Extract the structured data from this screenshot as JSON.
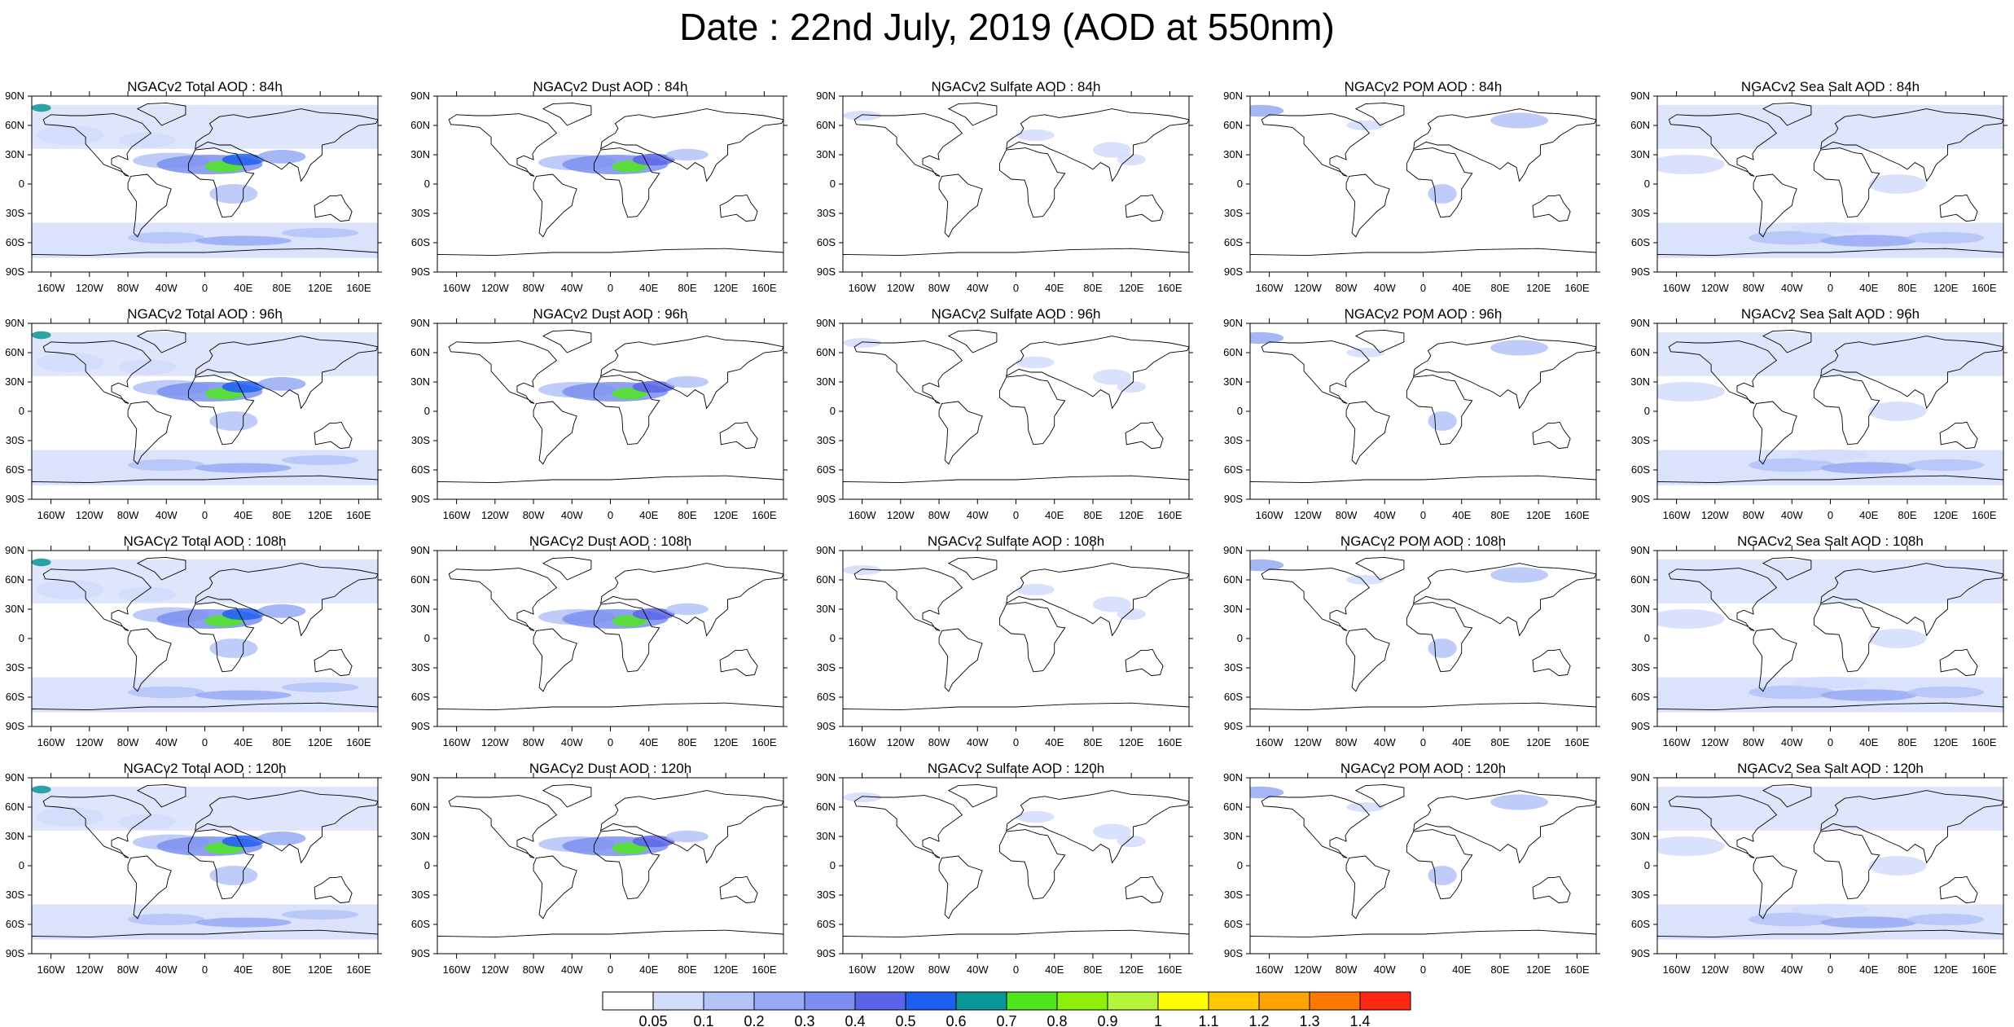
{
  "title": "Date : 22nd July, 2019 (AOD at 550nm)",
  "lat_ticks": [
    "90N",
    "60N",
    "30N",
    "0",
    "30S",
    "60S",
    "90S"
  ],
  "lon_ticks": [
    "160W",
    "120W",
    "80W",
    "40W",
    "0",
    "40E",
    "80E",
    "120E",
    "160E"
  ],
  "colorbar": {
    "colors": [
      "#ffffff",
      "#d2dcfb",
      "#b4c3f8",
      "#96aaf5",
      "#7a8ff0",
      "#5a64e8",
      "#1e5ff0",
      "#0a9696",
      "#50e61e",
      "#8cf00a",
      "#b4f53c",
      "#ffff00",
      "#ffc800",
      "#ffa500",
      "#ff7800",
      "#ff2814"
    ],
    "labels": [
      "0.05",
      "0.1",
      "0.2",
      "0.3",
      "0.4",
      "0.5",
      "0.6",
      "0.7",
      "0.8",
      "0.9",
      "1",
      "1.1",
      "1.2",
      "1.3",
      "1.4"
    ]
  },
  "panels": [
    {
      "title": "NGACv2 Total AOD : 84h",
      "type": "total"
    },
    {
      "title": "NGACv2 Dust AOD : 84h",
      "type": "dust"
    },
    {
      "title": "NGACv2 Sulfate AOD : 84h",
      "type": "sulfate"
    },
    {
      "title": "NGACv2 POM AOD : 84h",
      "type": "pom"
    },
    {
      "title": "NGACv2 Sea Salt AOD : 84h",
      "type": "seasalt"
    },
    {
      "title": "NGACv2 Total AOD : 96h",
      "type": "total"
    },
    {
      "title": "NGACv2 Dust AOD : 96h",
      "type": "dust"
    },
    {
      "title": "NGACv2 Sulfate AOD : 96h",
      "type": "sulfate"
    },
    {
      "title": "NGACv2 POM AOD : 96h",
      "type": "pom"
    },
    {
      "title": "NGACv2 Sea Salt AOD : 96h",
      "type": "seasalt"
    },
    {
      "title": "NGACv2 Total AOD : 108h",
      "type": "total"
    },
    {
      "title": "NGACv2 Dust AOD : 108h",
      "type": "dust"
    },
    {
      "title": "NGACv2 Sulfate AOD : 108h",
      "type": "sulfate"
    },
    {
      "title": "NGACv2 POM AOD : 108h",
      "type": "pom"
    },
    {
      "title": "NGACv2 Sea Salt AOD : 108h",
      "type": "seasalt"
    },
    {
      "title": "NGACv2 Total AOD : 120h",
      "type": "total"
    },
    {
      "title": "NGACv2 Dust AOD : 120h",
      "type": "dust"
    },
    {
      "title": "NGACv2 Sulfate AOD : 120h",
      "type": "sulfate"
    },
    {
      "title": "NGACv2 POM AOD : 120h",
      "type": "pom"
    },
    {
      "title": "NGACv2 Sea Salt  AOD : 120h",
      "type": "seasalt"
    }
  ]
}
